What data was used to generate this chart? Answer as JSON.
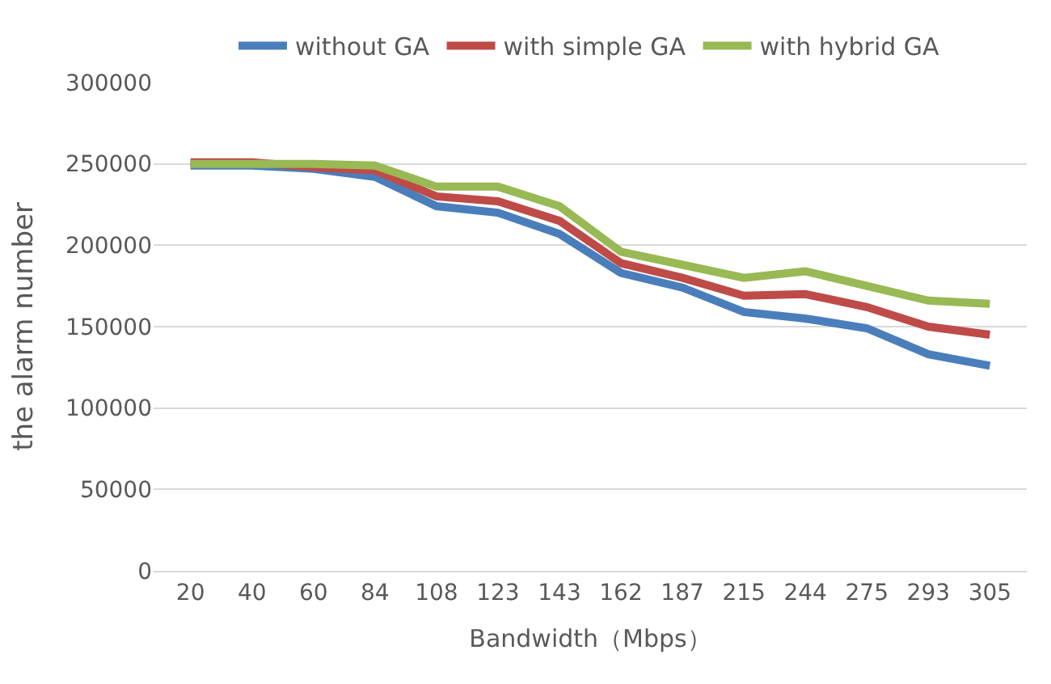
{
  "chart_data": {
    "type": "line",
    "xlabel": "Bandwidth（Mbps）",
    "ylabel": "the alarm number",
    "categories": [
      "20",
      "40",
      "60",
      "84",
      "108",
      "123",
      "143",
      "162",
      "187",
      "215",
      "244",
      "275",
      "293",
      "305"
    ],
    "series": [
      {
        "name": "without GA",
        "color": "#4a7ebb",
        "values": [
          249000,
          249000,
          247000,
          242000,
          224000,
          220000,
          207000,
          183000,
          174000,
          159000,
          155000,
          149000,
          133000,
          126000
        ]
      },
      {
        "name": "with simple GA",
        "color": "#be4b48",
        "values": [
          251000,
          251000,
          248000,
          246000,
          230000,
          227000,
          215000,
          189000,
          180000,
          169000,
          170000,
          162000,
          150000,
          145000
        ]
      },
      {
        "name": "with hybrid GA",
        "color": "#98b954",
        "values": [
          250000,
          250000,
          250000,
          249000,
          236000,
          236000,
          224000,
          196000,
          188000,
          180000,
          184000,
          175000,
          166000,
          164000
        ]
      }
    ],
    "ylim": [
      0,
      300000
    ],
    "yticks": [
      0,
      50000,
      100000,
      150000,
      200000,
      250000,
      300000
    ],
    "grid": "y",
    "legend": "top",
    "marker": "none",
    "line_style": "solid"
  }
}
